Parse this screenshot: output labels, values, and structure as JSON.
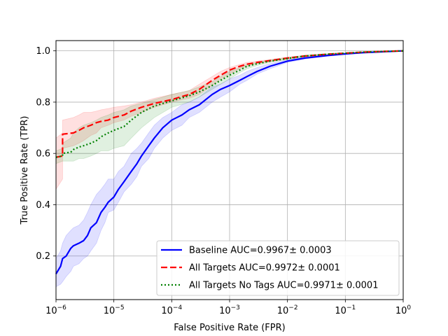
{
  "chart_data": {
    "type": "line",
    "xlabel": "False Positive Rate (FPR)",
    "ylabel": "True Positive Rate (TPR)",
    "xscale": "log",
    "xlim": [
      1e-06,
      1
    ],
    "ylim": [
      0.03,
      1.04
    ],
    "xticks": [
      {
        "value": 1e-06,
        "base": "10",
        "exp": "−6"
      },
      {
        "value": 1e-05,
        "base": "10",
        "exp": "−5"
      },
      {
        "value": 0.0001,
        "base": "10",
        "exp": "−4"
      },
      {
        "value": 0.001,
        "base": "10",
        "exp": "−3"
      },
      {
        "value": 0.01,
        "base": "10",
        "exp": "−2"
      },
      {
        "value": 0.1,
        "base": "10",
        "exp": "−1"
      },
      {
        "value": 1,
        "base": "10",
        "exp": "0"
      }
    ],
    "yticks": [
      {
        "value": 0.2,
        "label": "0.2"
      },
      {
        "value": 0.4,
        "label": "0.4"
      },
      {
        "value": 0.6,
        "label": "0.6"
      },
      {
        "value": 0.8,
        "label": "0.8"
      },
      {
        "value": 1.0,
        "label": "1.0"
      }
    ],
    "grid": true,
    "legend_position": "lower-right",
    "series": [
      {
        "name": "Baseline AUC=0.9967± 0.0003",
        "color": "#0000ff",
        "band_color": "#0000ff",
        "dash": "solid",
        "x": [
          1e-06,
          1.2e-06,
          1.3e-06,
          1.5e-06,
          1.8e-06,
          2e-06,
          2.5e-06,
          3e-06,
          3.5e-06,
          4e-06,
          5e-06,
          6e-06,
          7e-06,
          8e-06,
          1e-05,
          1.2e-05,
          1.5e-05,
          2e-05,
          2.5e-05,
          3e-05,
          4e-05,
          5e-05,
          7e-05,
          0.0001,
          0.00015,
          0.0002,
          0.0003,
          0.0005,
          0.0007,
          0.001,
          0.0015,
          0.002,
          0.003,
          0.005,
          0.01,
          0.02,
          0.05,
          0.1,
          0.2,
          0.5,
          1
        ],
        "y": [
          0.13,
          0.16,
          0.19,
          0.2,
          0.23,
          0.24,
          0.25,
          0.26,
          0.28,
          0.31,
          0.33,
          0.37,
          0.39,
          0.41,
          0.43,
          0.46,
          0.49,
          0.53,
          0.56,
          0.59,
          0.63,
          0.66,
          0.7,
          0.73,
          0.75,
          0.77,
          0.79,
          0.83,
          0.85,
          0.865,
          0.885,
          0.9,
          0.92,
          0.94,
          0.96,
          0.972,
          0.982,
          0.988,
          0.993,
          0.997,
          1.0
        ],
        "lower": [
          0.08,
          0.09,
          0.1,
          0.12,
          0.14,
          0.16,
          0.17,
          0.19,
          0.2,
          0.22,
          0.25,
          0.3,
          0.33,
          0.37,
          0.38,
          0.41,
          0.45,
          0.48,
          0.51,
          0.55,
          0.58,
          0.62,
          0.66,
          0.69,
          0.71,
          0.74,
          0.76,
          0.8,
          0.82,
          0.84,
          0.87,
          0.885,
          0.91,
          0.93,
          0.955,
          0.968,
          0.98,
          0.986,
          0.992,
          0.996,
          1.0
        ],
        "upper": [
          0.19,
          0.22,
          0.25,
          0.28,
          0.3,
          0.31,
          0.32,
          0.34,
          0.37,
          0.4,
          0.44,
          0.46,
          0.48,
          0.5,
          0.5,
          0.53,
          0.55,
          0.6,
          0.62,
          0.64,
          0.68,
          0.71,
          0.74,
          0.76,
          0.79,
          0.8,
          0.82,
          0.86,
          0.87,
          0.89,
          0.905,
          0.92,
          0.935,
          0.95,
          0.965,
          0.976,
          0.985,
          0.99,
          0.995,
          0.998,
          1.0
        ]
      },
      {
        "name": "All Targets AUC=0.9972± 0.0001",
        "color": "#ff0000",
        "band_color": "#ff0000",
        "dash": "dashed",
        "x": [
          1e-06,
          1.3e-06,
          1.3e-06,
          2e-06,
          2.5e-06,
          3e-06,
          4e-06,
          5e-06,
          6e-06,
          8e-06,
          1e-05,
          1.5e-05,
          2e-05,
          3e-05,
          5e-05,
          0.0001,
          0.0002,
          0.0003,
          0.0005,
          0.0007,
          0.001,
          0.0015,
          0.002,
          0.003,
          0.005,
          0.01,
          0.02,
          0.05,
          0.1,
          0.2,
          0.5,
          1
        ],
        "y": [
          0.585,
          0.59,
          0.675,
          0.68,
          0.69,
          0.7,
          0.71,
          0.72,
          0.725,
          0.73,
          0.74,
          0.75,
          0.765,
          0.78,
          0.795,
          0.81,
          0.83,
          0.85,
          0.885,
          0.905,
          0.925,
          0.94,
          0.948,
          0.955,
          0.962,
          0.972,
          0.98,
          0.987,
          0.991,
          0.995,
          0.998,
          1.0
        ],
        "lower": [
          0.46,
          0.5,
          0.62,
          0.63,
          0.64,
          0.65,
          0.67,
          0.68,
          0.7,
          0.71,
          0.72,
          0.73,
          0.745,
          0.76,
          0.78,
          0.8,
          0.815,
          0.83,
          0.865,
          0.89,
          0.91,
          0.93,
          0.94,
          0.95,
          0.958,
          0.968,
          0.977,
          0.985,
          0.99,
          0.994,
          0.997,
          1.0
        ],
        "upper": [
          0.66,
          0.68,
          0.73,
          0.74,
          0.75,
          0.76,
          0.76,
          0.765,
          0.77,
          0.775,
          0.78,
          0.785,
          0.79,
          0.8,
          0.815,
          0.83,
          0.845,
          0.87,
          0.9,
          0.92,
          0.935,
          0.947,
          0.955,
          0.96,
          0.966,
          0.975,
          0.982,
          0.988,
          0.992,
          0.996,
          0.998,
          1.0
        ]
      },
      {
        "name": "All Targets No Tags AUC=0.9971± 0.0001",
        "color": "#008000",
        "band_color": "#008000",
        "dash": "dotted",
        "x": [
          1e-06,
          1.3e-06,
          1.3e-06,
          1.8e-06,
          2e-06,
          2.5e-06,
          3e-06,
          4e-06,
          5e-06,
          6e-06,
          8e-06,
          1e-05,
          1.5e-05,
          2e-05,
          3e-05,
          5e-05,
          0.0001,
          0.0002,
          0.0003,
          0.0005,
          0.0007,
          0.001,
          0.0015,
          0.002,
          0.003,
          0.005,
          0.01,
          0.02,
          0.05,
          0.1,
          0.2,
          0.5,
          1
        ],
        "y": [
          0.585,
          0.59,
          0.6,
          0.605,
          0.615,
          0.625,
          0.63,
          0.64,
          0.65,
          0.665,
          0.68,
          0.69,
          0.705,
          0.73,
          0.76,
          0.785,
          0.805,
          0.825,
          0.84,
          0.865,
          0.885,
          0.905,
          0.925,
          0.94,
          0.95,
          0.96,
          0.97,
          0.98,
          0.987,
          0.991,
          0.995,
          0.998,
          1.0
        ],
        "lower": [
          0.56,
          0.57,
          0.57,
          0.57,
          0.57,
          0.58,
          0.58,
          0.59,
          0.6,
          0.61,
          0.61,
          0.62,
          0.63,
          0.66,
          0.7,
          0.74,
          0.78,
          0.8,
          0.82,
          0.85,
          0.87,
          0.89,
          0.915,
          0.93,
          0.943,
          0.955,
          0.966,
          0.977,
          0.985,
          0.99,
          0.994,
          0.997,
          1.0
        ],
        "upper": [
          0.61,
          0.62,
          0.64,
          0.66,
          0.68,
          0.7,
          0.71,
          0.72,
          0.73,
          0.74,
          0.75,
          0.76,
          0.77,
          0.785,
          0.795,
          0.81,
          0.83,
          0.845,
          0.86,
          0.88,
          0.9,
          0.92,
          0.935,
          0.948,
          0.956,
          0.965,
          0.974,
          0.983,
          0.989,
          0.992,
          0.996,
          0.998,
          1.0
        ]
      }
    ]
  }
}
